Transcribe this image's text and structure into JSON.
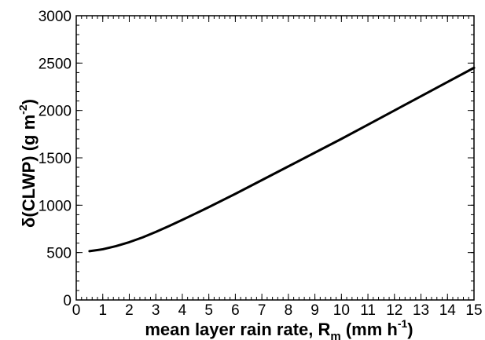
{
  "chart_data": {
    "type": "line",
    "title": "",
    "xlabel": {
      "main": "mean layer rain rate, R",
      "subscript": "m",
      "unit_open": " (mm h",
      "unit_sup": "-1",
      "unit_close": ")"
    },
    "ylabel": {
      "main": "δ(CLWP)  (g m",
      "unit_sup": "-2",
      "unit_close": ")"
    },
    "xlim": [
      0,
      15
    ],
    "ylim": [
      0,
      3000
    ],
    "x_ticks": [
      "0",
      "1",
      "2",
      "3",
      "4",
      "5",
      "6",
      "7",
      "8",
      "9",
      "10",
      "11",
      "12",
      "13",
      "14",
      "15"
    ],
    "y_ticks": [
      "0",
      "500",
      "1000",
      "1500",
      "2000",
      "2500",
      "3000"
    ],
    "x_minor_step": 0.2,
    "y_minor_step": 100,
    "grid": false,
    "series": [
      {
        "color": "#000000",
        "x": [
          0.5,
          1,
          1.5,
          2,
          2.5,
          3,
          3.5,
          4,
          4.5,
          5,
          6,
          7,
          8,
          9,
          10,
          11,
          12,
          13,
          14,
          15
        ],
        "y": [
          515,
          535,
          568,
          610,
          660,
          718,
          780,
          845,
          912,
          980,
          1120,
          1265,
          1410,
          1555,
          1700,
          1850,
          2000,
          2150,
          2300,
          2450
        ]
      }
    ]
  }
}
